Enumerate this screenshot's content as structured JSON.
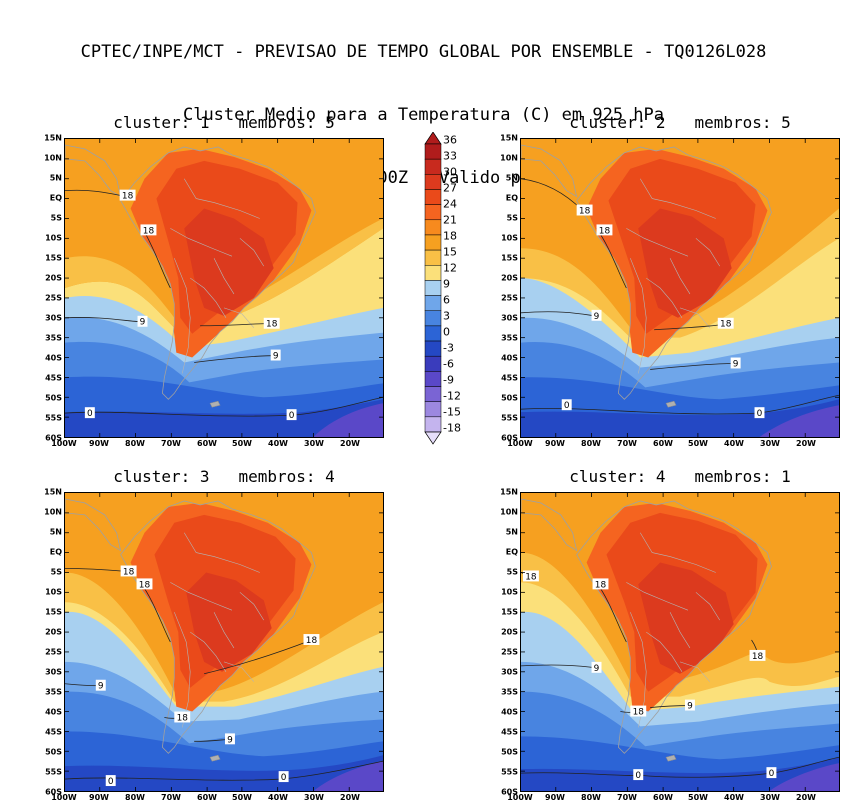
{
  "header": {
    "line1": "CPTEC/INPE/MCT - PREVISAO DE TEMPO GLOBAL POR ENSEMBLE - TQ0126L028",
    "line2": "Cluster Medio para a Temperatura (C) em 925 hPa",
    "line3": "Previsao de: 2020120300Z   Valido para: 2020121618Z"
  },
  "lat_ticks": [
    "15N",
    "10N",
    "5N",
    "EQ",
    "5S",
    "10S",
    "15S",
    "20S",
    "25S",
    "30S",
    "35S",
    "40S",
    "45S",
    "50S",
    "55S",
    "60S"
  ],
  "lon_ticks": [
    "100W",
    "90W",
    "80W",
    "70W",
    "60W",
    "50W",
    "40W",
    "30W",
    "20W"
  ],
  "colorbar": {
    "labels": [
      "36",
      "33",
      "30",
      "27",
      "24",
      "21",
      "18",
      "15",
      "12",
      "9",
      "6",
      "3",
      "0",
      "-3",
      "-6",
      "-9",
      "-12",
      "-15",
      "-18"
    ],
    "colors": [
      "#b01c1c",
      "#c82a1e",
      "#dc3a1e",
      "#ea4a1a",
      "#f56420",
      "#f78a1e",
      "#f6a020",
      "#f9c046",
      "#fbe07a",
      "#a8d0f0",
      "#6fa6ea",
      "#4884e0",
      "#2c64d6",
      "#2448c4",
      "#3a3cbc",
      "#5a48c8",
      "#7a64d4",
      "#9c88e0",
      "#c4b4ee"
    ]
  },
  "panels": [
    {
      "title": "cluster: 1   membros: 5",
      "contours": [
        "18",
        "18",
        "18",
        "9",
        "9",
        "0",
        "0"
      ]
    },
    {
      "title": "cluster: 2   membros: 5",
      "contours": [
        "18",
        "18",
        "18",
        "9",
        "9",
        "0",
        "0"
      ]
    },
    {
      "title": "cluster: 3   membros: 4",
      "contours": [
        "18",
        "18",
        "18",
        "18",
        "9",
        "9",
        "0",
        "0"
      ]
    },
    {
      "title": "cluster: 4   membros: 1",
      "contours": [
        "18",
        "18",
        "18",
        "18",
        "9",
        "9",
        "0",
        "0"
      ]
    }
  ]
}
